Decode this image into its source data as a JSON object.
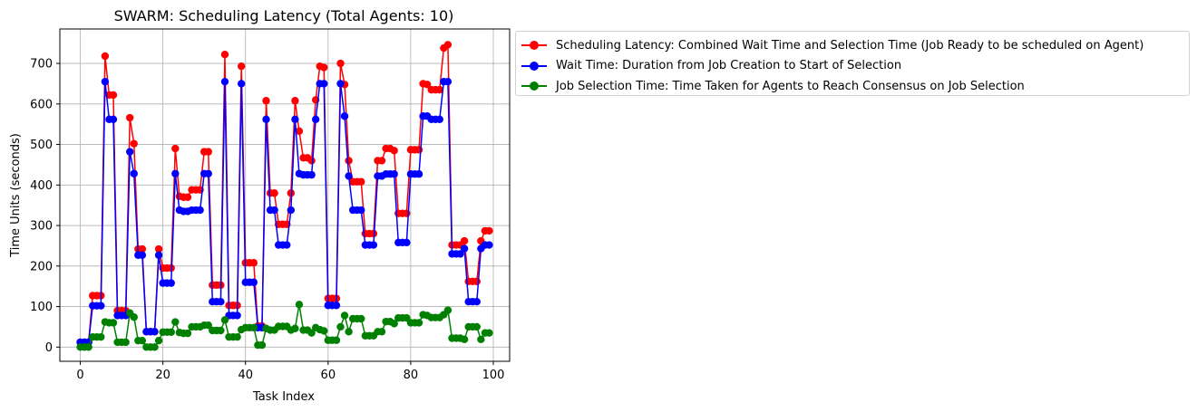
{
  "chart_data": {
    "type": "line",
    "title": "SWARM: Scheduling Latency (Total Agents: 10)",
    "xlabel": "Task Index",
    "ylabel": "Time Units (seconds)",
    "xlim": [
      -4.95,
      103.95
    ],
    "ylim": [
      -35,
      785
    ],
    "xticks": [
      0,
      20,
      40,
      60,
      80,
      100
    ],
    "yticks": [
      0,
      100,
      200,
      300,
      400,
      500,
      600,
      700
    ],
    "grid": true,
    "legend_position": "outside-right-top",
    "series": [
      {
        "name": "Scheduling Latency: Combined Wait Time and Selection Time (Job Ready to be scheduled on Agent)",
        "color": "#ff0000",
        "values": [
          12,
          12,
          12,
          127,
          127,
          127,
          718,
          622,
          622,
          90,
          90,
          90,
          566,
          502,
          242,
          242,
          38,
          38,
          38,
          242,
          195,
          195,
          195,
          490,
          372,
          370,
          370,
          388,
          388,
          388,
          482,
          482,
          153,
          153,
          153,
          722,
          103,
          103,
          103,
          693,
          208,
          208,
          208,
          52,
          52,
          608,
          380,
          380,
          303,
          303,
          303,
          380,
          608,
          533,
          467,
          467,
          460,
          610,
          693,
          690,
          120,
          120,
          120,
          700,
          648,
          460,
          408,
          408,
          408,
          280,
          280,
          280,
          460,
          460,
          490,
          490,
          485,
          330,
          330,
          330,
          487,
          487,
          487,
          650,
          648,
          635,
          635,
          635,
          738,
          746,
          252,
          252,
          252,
          262,
          162,
          162,
          162,
          262,
          287,
          287
        ]
      },
      {
        "name": "Wait Time: Duration from Job Creation to Start of Selection",
        "color": "#0000ff",
        "values": [
          12,
          12,
          12,
          102,
          102,
          102,
          655,
          562,
          562,
          78,
          78,
          78,
          482,
          428,
          227,
          227,
          38,
          38,
          38,
          227,
          158,
          158,
          158,
          428,
          338,
          335,
          335,
          338,
          338,
          338,
          428,
          428,
          112,
          112,
          112,
          655,
          78,
          78,
          78,
          650,
          160,
          160,
          160,
          48,
          48,
          562,
          338,
          338,
          252,
          252,
          252,
          338,
          562,
          428,
          425,
          425,
          425,
          562,
          650,
          650,
          103,
          103,
          103,
          650,
          570,
          422,
          338,
          338,
          338,
          252,
          252,
          252,
          422,
          422,
          427,
          427,
          427,
          258,
          258,
          258,
          427,
          427,
          427,
          570,
          570,
          562,
          562,
          562,
          655,
          655,
          230,
          230,
          230,
          243,
          112,
          112,
          112,
          243,
          252,
          252
        ]
      },
      {
        "name": "Job Selection Time: Time Taken for Agents to Reach Consensus on Job Selection",
        "color": "#008000",
        "values": [
          0,
          0,
          0,
          25,
          25,
          25,
          62,
          60,
          60,
          12,
          12,
          12,
          84,
          74,
          16,
          16,
          0,
          0,
          0,
          16,
          37,
          37,
          37,
          62,
          36,
          34,
          34,
          50,
          50,
          50,
          54,
          54,
          41,
          41,
          41,
          67,
          25,
          25,
          25,
          43,
          48,
          48,
          48,
          5,
          5,
          46,
          42,
          42,
          51,
          51,
          51,
          42,
          46,
          105,
          42,
          42,
          35,
          48,
          43,
          40,
          17,
          17,
          17,
          50,
          78,
          38,
          70,
          70,
          70,
          28,
          28,
          28,
          38,
          38,
          63,
          63,
          58,
          72,
          72,
          72,
          60,
          60,
          60,
          80,
          78,
          73,
          73,
          73,
          80,
          91,
          22,
          22,
          22,
          19,
          50,
          50,
          50,
          19,
          35,
          35
        ]
      }
    ]
  }
}
